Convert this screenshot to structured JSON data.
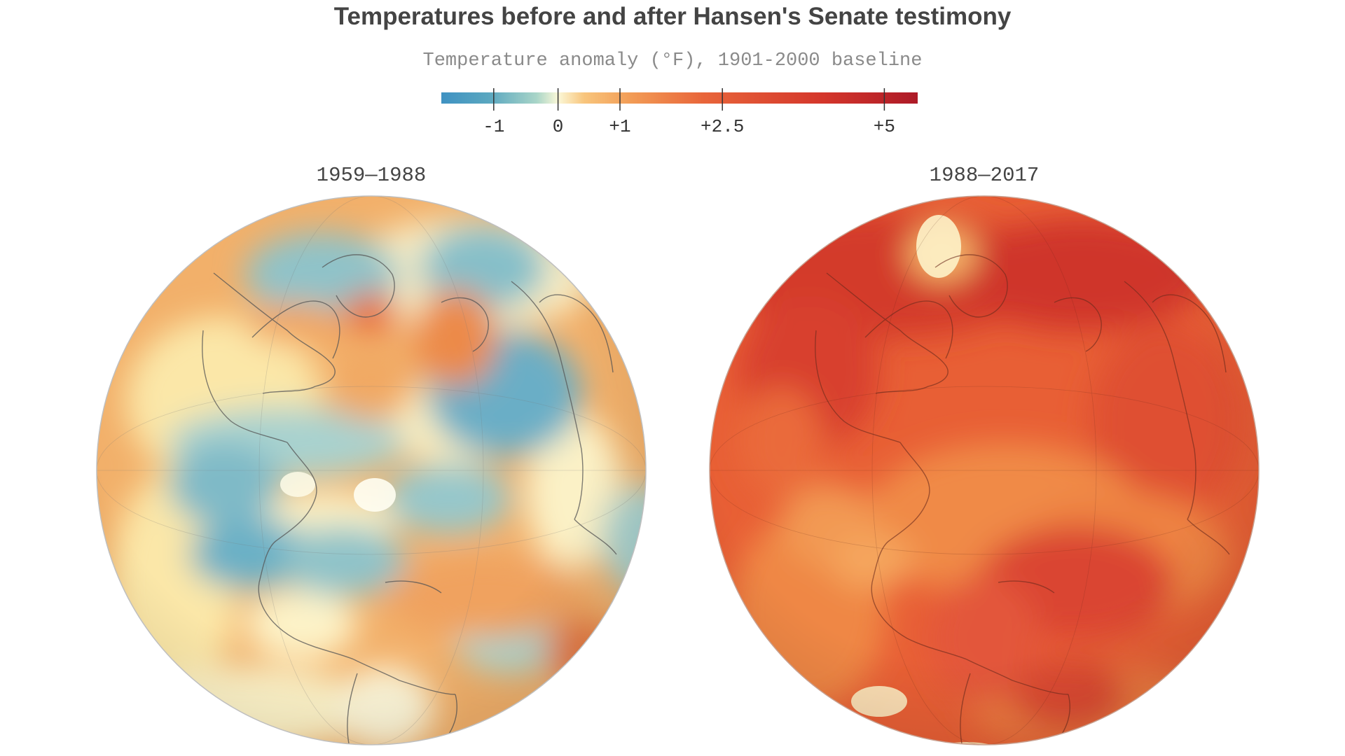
{
  "header": {
    "title": "Temperatures before and after Hansen's Senate testimony",
    "subtitle": "Temperature anomaly (°F), 1901-2000 baseline"
  },
  "legend": {
    "ticks": [
      {
        "value": -1,
        "label": "-1"
      },
      {
        "value": 0,
        "label": "0"
      },
      {
        "value": 1,
        "label": "+1"
      },
      {
        "value": 2.5,
        "label": "+2.5"
      },
      {
        "value": 5,
        "label": "+5"
      }
    ],
    "colors": {
      "cold": "#3f92c2",
      "neutral": "#fbf8d8",
      "warm": "#f7b26a",
      "hot": "#e7552f",
      "hottest": "#ad1a27"
    }
  },
  "panels": [
    {
      "id": "left",
      "label": "1959—1988",
      "base_color": "#f2b06a"
    },
    {
      "id": "right",
      "label": "1988—2017",
      "base_color": "#e85f35"
    }
  ]
}
